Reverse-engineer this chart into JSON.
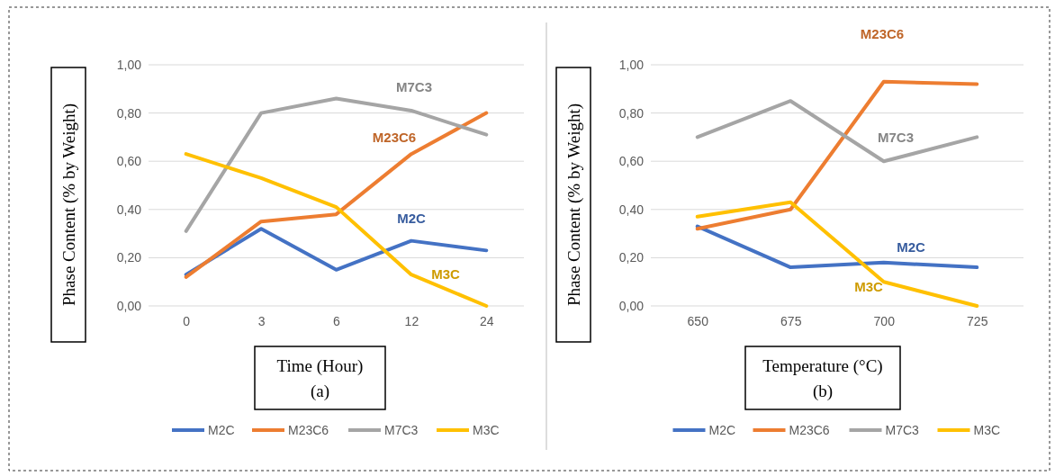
{
  "chart_data": [
    {
      "type": "line",
      "xlabel": "Time (Hour)",
      "ylabel": "Phase Content (% by Weight)",
      "categories": [
        "0",
        "3",
        "6",
        "12",
        "24"
      ],
      "series": [
        {
          "name": "M2C",
          "color": "#4472c4",
          "values": [
            0.13,
            0.32,
            0.15,
            0.27,
            0.23
          ]
        },
        {
          "name": "M23C6",
          "color": "#ed7d31",
          "values": [
            0.12,
            0.35,
            0.38,
            0.63,
            0.8
          ]
        },
        {
          "name": "M7C3",
          "color": "#a5a5a5",
          "values": [
            0.31,
            0.8,
            0.86,
            0.81,
            0.71
          ]
        },
        {
          "name": "M3C",
          "color": "#ffc000",
          "values": [
            0.63,
            0.53,
            0.41,
            0.13,
            0.0
          ]
        }
      ],
      "ylim": [
        0,
        1
      ],
      "yticks": [
        {
          "value": 0,
          "label": "0,00"
        },
        {
          "value": 0.2,
          "label": "0,20"
        },
        {
          "value": 0.4,
          "label": "0,40"
        },
        {
          "value": 0.6,
          "label": "0,60"
        },
        {
          "value": 0.8,
          "label": "0,80"
        },
        {
          "value": 1,
          "label": "1,00"
        }
      ],
      "grid": "y",
      "legend": "bottom",
      "marker": "none",
      "line_style": "solid",
      "annotations": [
        "(a)"
      ]
    },
    {
      "type": "line",
      "xlabel": "Temperature (°C)",
      "ylabel": "Phase Content (% by Weight)",
      "categories": [
        "650",
        "675",
        "700",
        "725"
      ],
      "series": [
        {
          "name": "M2C",
          "color": "#4472c4",
          "values": [
            0.33,
            0.16,
            0.18,
            0.16
          ]
        },
        {
          "name": "M23C6",
          "color": "#ed7d31",
          "values": [
            0.32,
            0.4,
            0.93,
            0.92
          ]
        },
        {
          "name": "M7C3",
          "color": "#a5a5a5",
          "values": [
            0.7,
            0.85,
            0.6,
            0.7
          ]
        },
        {
          "name": "M3C",
          "color": "#ffc000",
          "values": [
            0.37,
            0.43,
            0.1,
            0.0
          ]
        }
      ],
      "ylim": [
        0,
        1
      ],
      "yticks": [
        {
          "value": 0,
          "label": "0,00"
        },
        {
          "value": 0.2,
          "label": "0,20"
        },
        {
          "value": 0.4,
          "label": "0,40"
        },
        {
          "value": 0.6,
          "label": "0,60"
        },
        {
          "value": 0.8,
          "label": "0,80"
        },
        {
          "value": 1,
          "label": "1,00"
        }
      ],
      "grid": "y",
      "legend": "bottom",
      "marker": "none",
      "line_style": "solid",
      "annotations": [
        "(b)"
      ]
    }
  ]
}
